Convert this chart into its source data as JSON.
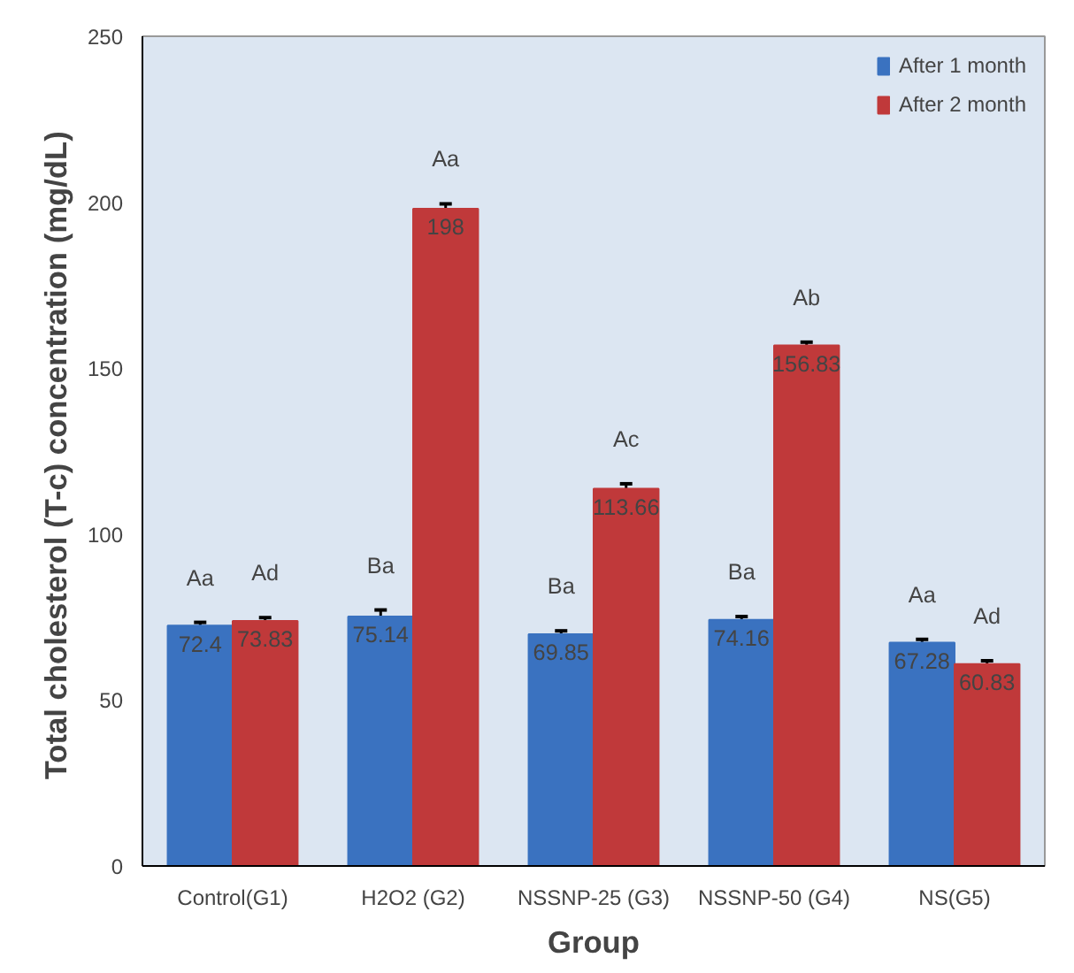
{
  "chart_data": {
    "type": "bar",
    "xlabel": "Group",
    "ylabel": "Total  cholesterol (T-c) concentration (mg/dL)",
    "categories": [
      "Control(G1)",
      "H2O2 (G2)",
      "NSSNP-25 (G3)",
      "NSSNP-50 (G4)",
      "NS(G5)"
    ],
    "series": [
      {
        "name": "After 1 month",
        "color": "#3a72c0",
        "values": [
          72.4,
          75.14,
          69.85,
          74.16,
          67.28
        ],
        "errors": [
          1,
          2,
          1,
          1,
          1
        ]
      },
      {
        "name": "After 2 month",
        "color": "#c0393a",
        "values": [
          73.83,
          198,
          113.66,
          156.83,
          60.83
        ],
        "errors": [
          1,
          1.5,
          1.5,
          1,
          1
        ]
      }
    ],
    "ylim": [
      0,
      250
    ],
    "yticks": [
      0,
      50,
      100,
      150,
      200,
      250
    ],
    "grid": false,
    "legend": "top right",
    "data_labels": true,
    "annotations": [
      "Aa",
      "Ba",
      "Ba",
      "Ba",
      "Aa",
      "Ad",
      "Aa",
      "Ac",
      "Ab",
      "Ad"
    ]
  }
}
